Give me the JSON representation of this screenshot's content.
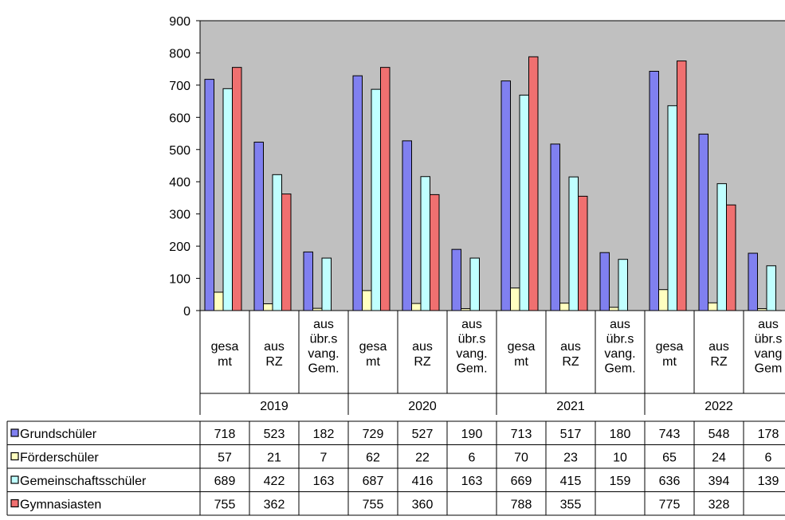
{
  "chart_data": {
    "type": "bar",
    "ylim": [
      0,
      900
    ],
    "yticks": [
      "0",
      "100",
      "200",
      "300",
      "400",
      "500",
      "600",
      "700",
      "800",
      "900"
    ],
    "grid": false,
    "plot_background": "#c0c0c0",
    "legend": "table-left",
    "groups": [
      {
        "year": "2019",
        "subcategories": [
          [
            "gesa",
            "mt"
          ],
          [
            "aus",
            "RZ"
          ],
          [
            "aus",
            "übr.s",
            "vang.",
            "Gem."
          ]
        ]
      },
      {
        "year": "2020",
        "subcategories": [
          [
            "gesa",
            "mt"
          ],
          [
            "aus",
            "RZ"
          ],
          [
            "aus",
            "übr.s",
            "vang.",
            "Gem."
          ]
        ]
      },
      {
        "year": "2021",
        "subcategories": [
          [
            "gesa",
            "mt"
          ],
          [
            "aus",
            "RZ"
          ],
          [
            "aus",
            "übr.s",
            "vang.",
            "Gem."
          ]
        ]
      },
      {
        "year": "2022",
        "subcategories": [
          [
            "gesa",
            "mt"
          ],
          [
            "aus",
            "RZ"
          ],
          [
            "aus",
            "übr.s",
            "vang",
            "Gem"
          ]
        ]
      }
    ],
    "series": [
      {
        "name": "Grundschüler",
        "color": "#8080f0",
        "values": [
          718,
          523,
          182,
          729,
          527,
          190,
          713,
          517,
          180,
          743,
          548,
          178
        ]
      },
      {
        "name": "Förderschüler",
        "color": "#ffffc0",
        "values": [
          57,
          21,
          7,
          62,
          22,
          6,
          70,
          23,
          10,
          65,
          24,
          6
        ]
      },
      {
        "name": "Gemeinschaftsschüler",
        "color": "#c0ffff",
        "values": [
          689,
          422,
          163,
          687,
          416,
          163,
          669,
          415,
          159,
          636,
          394,
          139
        ]
      },
      {
        "name": "Gymnasiasten",
        "color": "#f07070",
        "values": [
          755,
          362,
          null,
          755,
          360,
          null,
          788,
          355,
          null,
          775,
          328,
          null
        ]
      }
    ]
  }
}
